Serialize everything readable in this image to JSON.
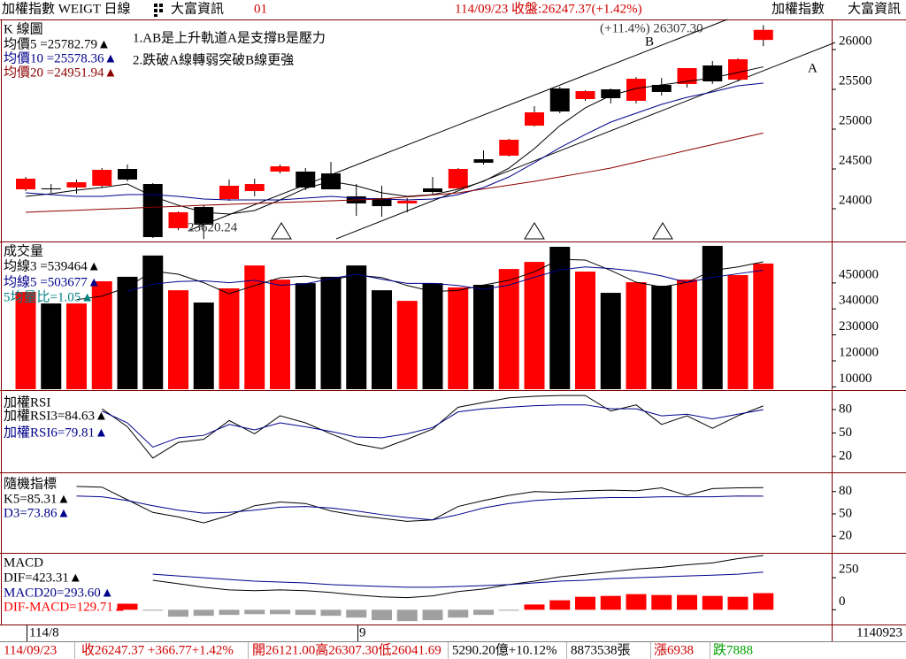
{
  "header": {
    "title": "加權指數 WEIGT 日線",
    "vendor": "大富資訊",
    "code": "01",
    "quote": "114/09/23 收盤:26247.37(+1.42%)",
    "right_title": "加權指數",
    "right_vendor": "大富資訊"
  },
  "x_axis": {
    "labels": [
      "114/8",
      "9",
      "1140923"
    ]
  },
  "status": [
    "114/09/23",
    "收26247.37 +366.77+1.42%",
    "開26121.00高26307.30低26041.69",
    "5290.20億+10.12%",
    "8873538張",
    "漲6938",
    "跌7888"
  ],
  "chart_data": [
    {
      "type": "candlestick",
      "title": "K 線圖",
      "up_color": "#ff0000",
      "down_color": "#000000",
      "open": [
        24244,
        24256,
        24267,
        24289,
        24500,
        24311,
        23756,
        24022,
        24122,
        24222,
        24467,
        24467,
        24444,
        24156,
        24133,
        24067,
        24256,
        24256,
        24622,
        24667,
        25044,
        25511,
        25378,
        25500,
        25356,
        25556,
        25567,
        25800,
        25622,
        26121.0
      ],
      "high": [
        24400,
        24311,
        24367,
        24511,
        24556,
        24322,
        23967,
        24044,
        24367,
        24378,
        24556,
        24511,
        24589,
        24311,
        24289,
        24133,
        24400,
        24511,
        24733,
        24878,
        25289,
        25533,
        25489,
        25511,
        25656,
        25644,
        25767,
        25856,
        25889,
        26307.3
      ],
      "low": [
        24222,
        24200,
        24189,
        24267,
        24344,
        23633,
        23730,
        23620.24,
        24100,
        24156,
        24444,
        24233,
        24244,
        23911,
        23900,
        23956,
        24178,
        24244,
        24556,
        24656,
        25033,
        25200,
        25356,
        25322,
        25322,
        25422,
        25522,
        25567,
        25600,
        26041.69
      ],
      "close": [
        24378,
        24244,
        24333,
        24489,
        24367,
        23644,
        23956,
        23800,
        24289,
        24311,
        24533,
        24267,
        24244,
        24067,
        24033,
        24100,
        24211,
        24500,
        24578,
        24867,
        25211,
        25222,
        25478,
        25389,
        25633,
        25467,
        25767,
        25600,
        25878,
        26247.37
      ],
      "series": [
        {
          "name": "均價5 =25782.79▲",
          "color": "#000000",
          "values": [
            24156,
            24189,
            24233,
            24267,
            24311,
            24156,
            24044,
            23956,
            23933,
            23978,
            24111,
            24256,
            24344,
            24289,
            24200,
            24156,
            24178,
            24244,
            24344,
            24511,
            24756,
            25044,
            25267,
            25422,
            25511,
            25556,
            25600,
            25644,
            25711,
            25782.79
          ]
        },
        {
          "name": "均價10 =25578.36▲",
          "color": "#00008b",
          "values": [
            24200,
            24178,
            24156,
            24156,
            24178,
            24178,
            24156,
            24122,
            24111,
            24111,
            24111,
            24133,
            24156,
            24133,
            24122,
            24111,
            24122,
            24178,
            24267,
            24400,
            24578,
            24767,
            24933,
            25089,
            25200,
            25311,
            25400,
            25467,
            25544,
            25578.36
          ]
        },
        {
          "name": "均價20 =24951.94▲",
          "color": "#8b0000",
          "values": [
            23956,
            23969,
            23981,
            23994,
            24006,
            24019,
            24031,
            24044,
            24055,
            24067,
            24078,
            24089,
            24100,
            24111,
            24122,
            24148,
            24174,
            24200,
            24248,
            24296,
            24344,
            24400,
            24455,
            24511,
            24585,
            24659,
            24733,
            24806,
            24879,
            24951.94
          ]
        }
      ],
      "annotations": [
        "1.AB是上升軌道A是支撐B是壓力",
        "2.跌破A線轉弱突破B線更強",
        "(+11.4%) 26307.30",
        "B",
        "A",
        "23620.24"
      ],
      "ylim": [
        23600,
        26378
      ],
      "yticks": [
        24000,
        24500,
        25000,
        25500,
        26000
      ]
    },
    {
      "type": "bar",
      "title": "成交量",
      "values": [
        412000,
        363000,
        363000,
        457000,
        476000,
        566000,
        419000,
        367000,
        427000,
        524000,
        464000,
        449000,
        476000,
        524000,
        419000,
        374000,
        449000,
        431000,
        442000,
        509000,
        539000,
        603000,
        498000,
        408000,
        453000,
        438000,
        464000,
        607000,
        483000,
        532000
      ],
      "colors": [
        "#ff0000",
        "#000000",
        "#ff0000",
        "#ff0000",
        "#000000",
        "#000000",
        "#ff0000",
        "#000000",
        "#ff0000",
        "#ff0000",
        "#ff0000",
        "#000000",
        "#000000",
        "#000000",
        "#000000",
        "#ff0000",
        "#000000",
        "#ff0000",
        "#000000",
        "#ff0000",
        "#ff0000",
        "#000000",
        "#ff0000",
        "#000000",
        "#ff0000",
        "#000000",
        "#ff0000",
        "#000000",
        "#ff0000",
        "#ff0000"
      ],
      "series": [
        {
          "name": "均線3 =539464▲",
          "color": "#000000",
          "values": [
            null,
            null,
            379000,
            394000,
            432000,
            500000,
            487000,
            451000,
            404000,
            439000,
            472000,
            479000,
            463000,
            483000,
            473000,
            439000,
            414000,
            418000,
            441000,
            461000,
            497000,
            550000,
            547000,
            503000,
            453000,
            433000,
            452000,
            503000,
            518000,
            539464
          ]
        },
        {
          "name": "均線5 =503677▲",
          "color": "#00008b",
          "values": [
            null,
            null,
            null,
            null,
            414000,
            445000,
            456000,
            459000,
            451000,
            461000,
            440000,
            446000,
            468000,
            487000,
            466000,
            448000,
            448000,
            439000,
            423000,
            441000,
            474000,
            505000,
            518000,
            511000,
            500000,
            480000,
            452000,
            474000,
            489000,
            503677
          ]
        }
      ],
      "annotations": [
        "5均量比=1.05▲"
      ],
      "ylim": [
        0,
        618000
      ],
      "yticks": [
        10000,
        120000,
        230000,
        340000,
        450000
      ]
    },
    {
      "type": "line",
      "title": "加權RSI",
      "series": [
        {
          "name": "加權RSI3=84.63▲",
          "color": "#000000",
          "values": [
            null,
            null,
            null,
            81,
            58,
            18,
            38,
            42,
            66,
            49,
            72,
            63,
            49,
            36,
            30,
            42,
            55,
            83,
            89,
            95,
            97,
            98,
            98,
            78,
            86,
            61,
            72,
            56,
            72,
            84.63
          ]
        },
        {
          "name": "加權RSI6=79.81▲",
          "color": "#00008b",
          "values": [
            null,
            null,
            null,
            78,
            63,
            32,
            44,
            47,
            61,
            54,
            63,
            58,
            52,
            45,
            44,
            49,
            57,
            77,
            81,
            83,
            85,
            86,
            86,
            81,
            81,
            72,
            74,
            68,
            74,
            79.81
          ]
        }
      ],
      "ylim": [
        2,
        102.6
      ],
      "yticks": [
        20,
        50,
        80
      ]
    },
    {
      "type": "line",
      "title": "隨機指標",
      "series": [
        {
          "name": "K5=85.31▲",
          "color": "#000000",
          "values": [
            null,
            null,
            87,
            86,
            69,
            52,
            46,
            38,
            48,
            61,
            66,
            64,
            54,
            48,
            44,
            40,
            42,
            60,
            68,
            75,
            80,
            79,
            81,
            82,
            81,
            85,
            75,
            84,
            85,
            85.31
          ]
        },
        {
          "name": "D3=73.86▲",
          "color": "#00008b",
          "values": [
            null,
            null,
            74,
            73,
            68,
            61,
            55,
            51,
            52,
            55,
            59,
            60,
            58,
            54,
            49,
            45,
            42,
            49,
            58,
            64,
            68,
            70,
            71,
            72,
            72,
            73,
            73,
            73,
            74,
            73.86
          ]
        }
      ],
      "ylim": [
        0,
        103.5
      ],
      "yticks": [
        20,
        50,
        80
      ]
    },
    {
      "type": "bar",
      "title": "MACD",
      "values_name": "DIF-MACD=129.71▲",
      "pos_color": "#ff0000",
      "neg_color": "#a0a0a0",
      "values": [
        null,
        null,
        null,
        null,
        47,
        -3,
        -54,
        -47,
        -40,
        -34,
        -34,
        -40,
        -47,
        -61,
        -81,
        -88,
        -81,
        -61,
        -40,
        -5,
        41,
        74,
        101,
        108,
        122,
        115,
        115,
        108,
        101,
        129.71
      ],
      "series": [
        {
          "name": "DIF=423.31▲",
          "color": "#000000",
          "values": [
            null,
            null,
            null,
            null,
            null,
            230,
            203,
            176,
            155,
            149,
            155,
            149,
            135,
            115,
            101,
            95,
            108,
            142,
            162,
            196,
            223,
            257,
            277,
            297,
            318,
            331,
            351,
            365,
            399,
            423.31
          ]
        },
        {
          "name": "MACD20=293.60▲",
          "color": "#00008b",
          "values": [
            null,
            null,
            null,
            null,
            null,
            277,
            264,
            250,
            236,
            223,
            216,
            209,
            196,
            189,
            182,
            176,
            176,
            182,
            189,
            196,
            209,
            223,
            230,
            243,
            250,
            257,
            264,
            270,
            277,
            293.6
          ]
        }
      ],
      "ylim": [
        -108,
        430
      ],
      "yticks": [
        0,
        250
      ]
    }
  ]
}
